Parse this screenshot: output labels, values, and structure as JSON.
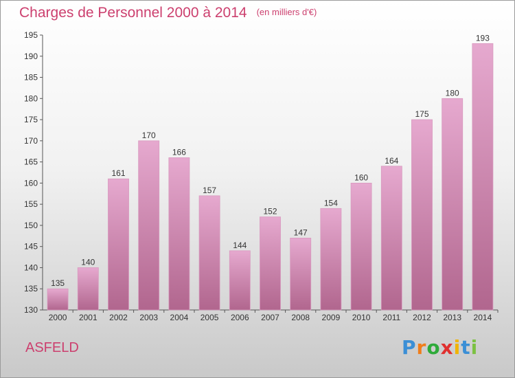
{
  "title": "Charges de Personnel 2000 à 2014",
  "subtitle": "(en milliers d'€)",
  "commune": "ASFELD",
  "logo": {
    "letters": [
      "P",
      "r",
      "o",
      "x",
      "i",
      "t",
      "i"
    ],
    "colors": [
      "#3b8fd6",
      "#f07d1a",
      "#2eaa3a",
      "#e0302f",
      "#f0b400",
      "#3b8fd6",
      "#7cc142"
    ]
  },
  "colors": {
    "bar_top": "#e6a9cf",
    "bar_bottom": "#b1668e",
    "title": "#cc3f6e"
  },
  "chart_data": {
    "type": "bar",
    "categories": [
      "2000",
      "2001",
      "2002",
      "2003",
      "2004",
      "2005",
      "2006",
      "2007",
      "2008",
      "2009",
      "2010",
      "2011",
      "2012",
      "2013",
      "2014"
    ],
    "values": [
      135,
      140,
      161,
      170,
      166,
      157,
      144,
      152,
      147,
      154,
      160,
      164,
      175,
      180,
      193
    ],
    "ylim": [
      130,
      195
    ],
    "yticks": [
      130,
      135,
      140,
      145,
      150,
      155,
      160,
      165,
      170,
      175,
      180,
      185,
      190,
      195
    ],
    "grid": false,
    "legend": "none",
    "data_labels": true
  }
}
